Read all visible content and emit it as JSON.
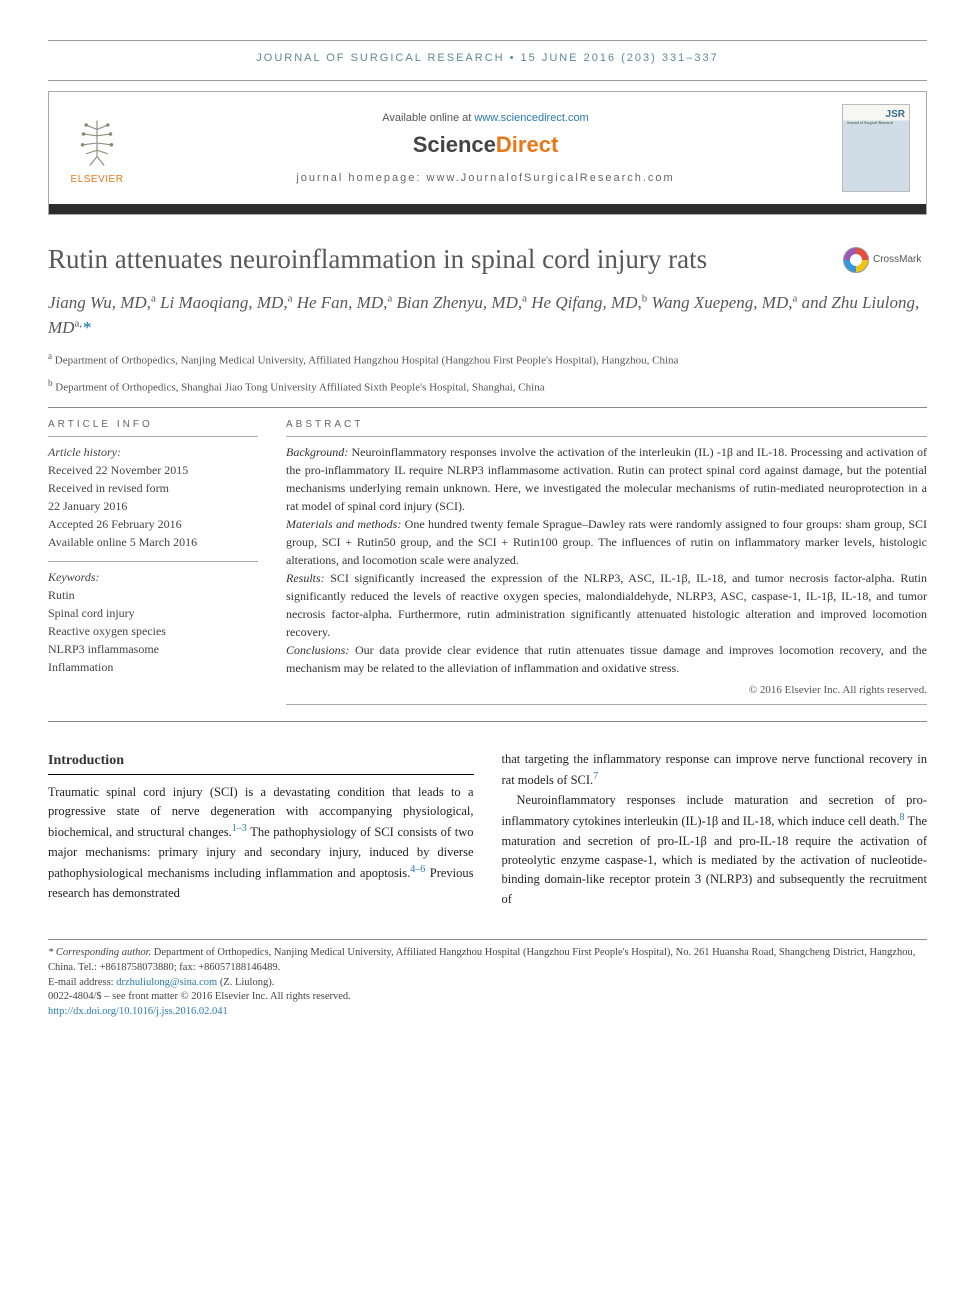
{
  "running_head": "journal of surgical research • 15 june 2016 (203) 331–337",
  "header": {
    "available_pre": "Available online at ",
    "available_link": "www.sciencedirect.com",
    "sd_brand_a": "Science",
    "sd_brand_b": "Direct",
    "homepage_label": "journal homepage: ",
    "homepage_url": "www.JournalofSurgicalResearch.com",
    "elsevier_label": "ELSEVIER",
    "jsr_label": "JSR",
    "jsr_sub": "Journal of Surgical Research"
  },
  "title": "Rutin attenuates neuroinflammation in spinal cord injury rats",
  "crossmark": "CrossMark",
  "authors_html": "Jiang Wu, MD,<sup>a</sup> Li Maoqiang, MD,<sup>a</sup> He Fan, MD,<sup>a</sup> Bian Zhenyu, MD,<sup>a</sup> He Qifang, MD,<sup>b</sup> Wang Xuepeng, MD,<sup>a</sup> and Zhu Liulong, MD<sup>a,</sup>",
  "affiliations": {
    "a": "Department of Orthopedics, Nanjing Medical University, Affiliated Hangzhou Hospital (Hangzhou First People's Hospital), Hangzhou, China",
    "b": "Department of Orthopedics, Shanghai Jiao Tong University Affiliated Sixth People's Hospital, Shanghai, China"
  },
  "article_info_label": "article info",
  "abstract_label": "abstract",
  "history_label": "Article history:",
  "history": {
    "received": "Received 22 November 2015",
    "revised1": "Received in revised form",
    "revised2": "22 January 2016",
    "accepted": "Accepted 26 February 2016",
    "online": "Available online 5 March 2016"
  },
  "keywords_label": "Keywords:",
  "keywords": [
    "Rutin",
    "Spinal cord injury",
    "Reactive oxygen species",
    "NLRP3 inflammasome",
    "Inflammation"
  ],
  "abstract": {
    "background_lbl": "Background:",
    "background": " Neuroinflammatory responses involve the activation of the interleukin (IL) -1β and IL-18. Processing and activation of the pro-inflammatory IL require NLRP3 inflammasome activation. Rutin can protect spinal cord against damage, but the potential mechanisms underlying remain unknown. Here, we investigated the molecular mechanisms of rutin-mediated neuroprotection in a rat model of spinal cord injury (SCI).",
    "methods_lbl": "Materials and methods:",
    "methods": " One hundred twenty female Sprague–Dawley rats were randomly assigned to four groups: sham group, SCI group, SCI + Rutin50 group, and the SCI + Rutin100 group. The influences of rutin on inflammatory marker levels, histologic alterations, and locomotion scale were analyzed.",
    "results_lbl": "Results:",
    "results": " SCI significantly increased the expression of the NLRP3, ASC, IL-1β, IL-18, and tumor necrosis factor-alpha. Rutin significantly reduced the levels of reactive oxygen species, malondialdehyde, NLRP3, ASC, caspase-1, IL-1β, IL-18, and tumor necrosis factor-alpha. Furthermore, rutin administration significantly attenuated histologic alteration and improved locomotion recovery.",
    "conclusions_lbl": "Conclusions:",
    "conclusions": " Our data provide clear evidence that rutin attenuates tissue damage and improves locomotion recovery, and the mechanism may be related to the alleviation of inflammation and oxidative stress."
  },
  "abs_copyright": "© 2016 Elsevier Inc. All rights reserved.",
  "intro_label": "Introduction",
  "col1": {
    "p1a": "Traumatic spinal cord injury (SCI) is a devastating condition that leads to a progressive state of nerve degeneration with accompanying physiological, biochemical, and structural changes.",
    "p1b": " The pathophysiology of SCI consists of two major mechanisms: primary injury and secondary injury, induced by diverse pathophysiological mechanisms including inflammation and apoptosis.",
    "p1c": " Previous research has demonstrated",
    "ref1": "1–3",
    "ref2": "4–6"
  },
  "col2": {
    "p1a": "that targeting the inflammatory response can improve nerve functional recovery in rat models of SCI.",
    "ref7": "7",
    "p2a": "Neuroinflammatory responses include maturation and secretion of pro-inflammatory cytokines interleukin (IL)-1β and IL-18, which induce cell death.",
    "ref8": "8",
    "p2b": " The maturation and secretion of pro-IL-1β and pro-IL-18 require the activation of proteolytic enzyme caspase-1, which is mediated by the activation of nucleotide-binding domain-like receptor protein 3 (NLRP3) and subsequently the recruitment of"
  },
  "footnote": {
    "corr_lbl": "* Corresponding author.",
    "corr": " Department of Orthopedics, Nanjing Medical University, Affiliated Hangzhou Hospital (Hangzhou First People's Hospital), No. 261 Huansha Road, Shangcheng District, Hangzhou, China. Tel.: +8618758073880; fax: +86057188146489.",
    "email_lbl": "E-mail address: ",
    "email": "drzhuliulong@sina.com",
    "email_who": " (Z. Liulong).",
    "issn": "0022-4804/$ – see front matter © 2016 Elsevier Inc. All rights reserved.",
    "doi": "http://dx.doi.org/10.1016/j.jss.2016.02.041"
  },
  "colors": {
    "header_teal": "#5b8a9a",
    "orange": "#e67817",
    "link_blue": "#2a7ab0",
    "title_gray": "#58585a",
    "dark_bar": "#2c2c2c"
  }
}
